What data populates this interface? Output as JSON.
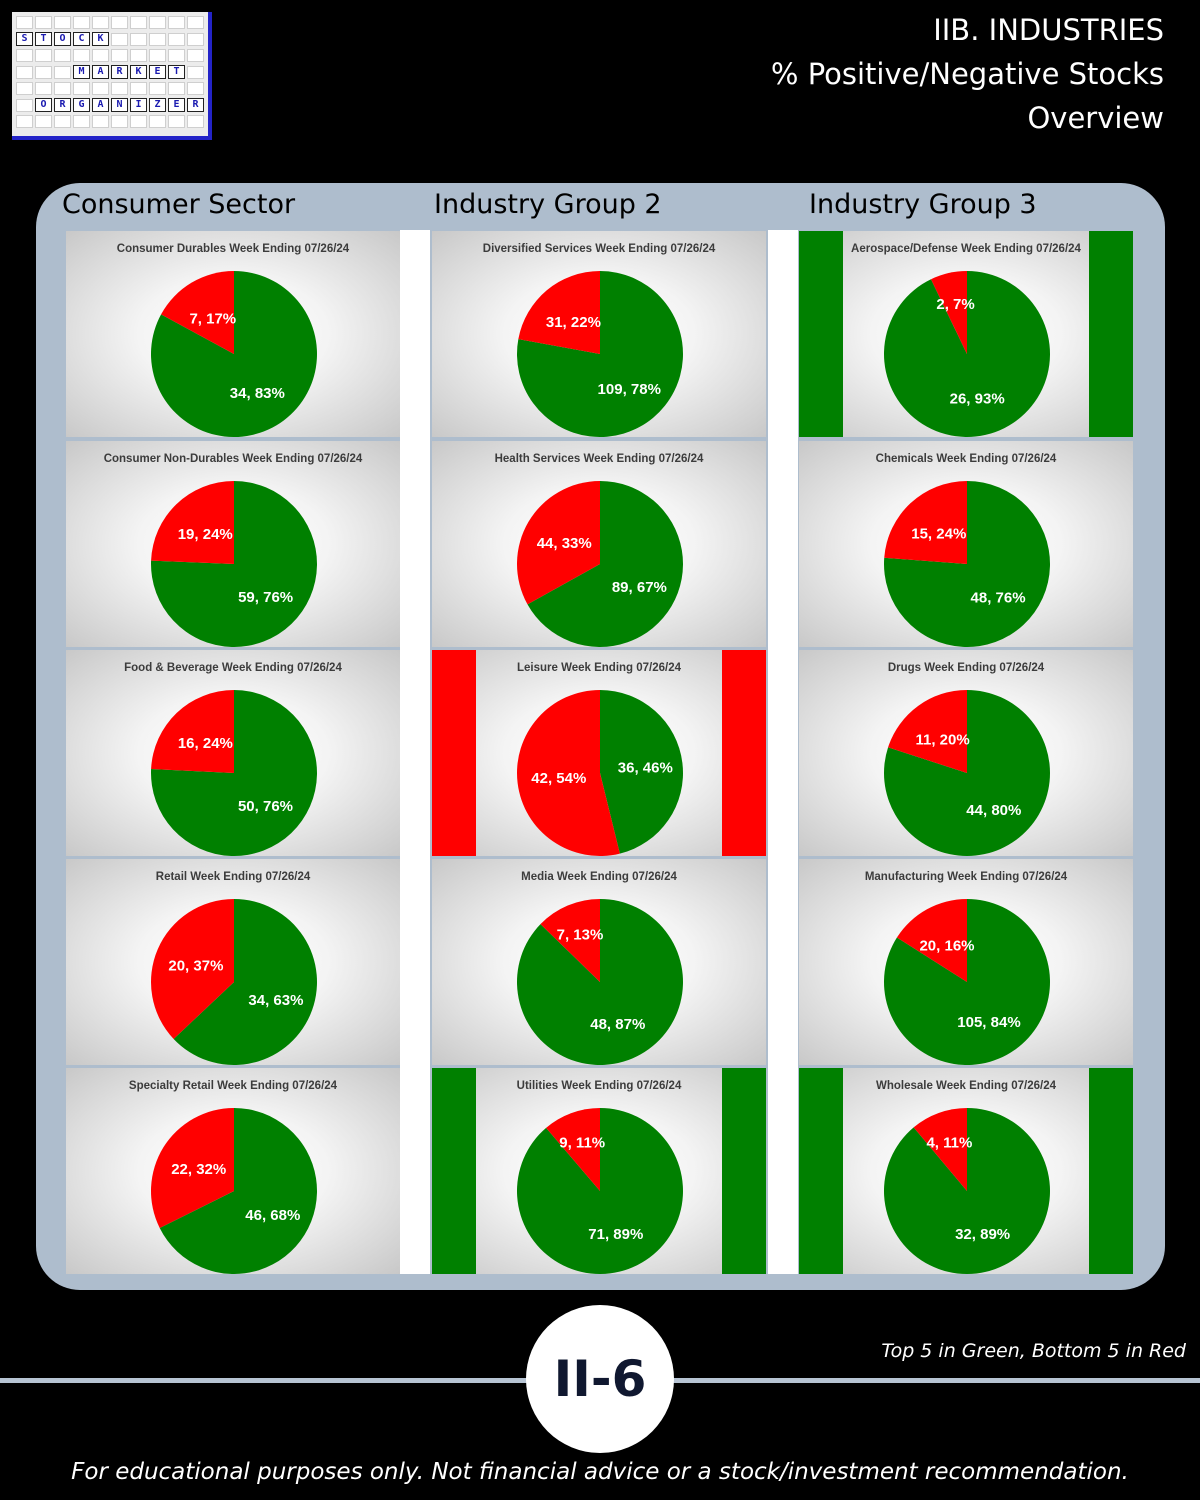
{
  "header": {
    "line1": "IIB. INDUSTRIES",
    "line2": "% Positive/Negative Stocks",
    "line3": "Overview"
  },
  "logo": {
    "words": [
      "STOCK",
      "MARKET",
      "ORGANIZER"
    ],
    "border_color": "#2323c8"
  },
  "columns": [
    {
      "title": "Consumer Sector"
    },
    {
      "title": "Industry Group 2"
    },
    {
      "title": "Industry Group 3"
    }
  ],
  "colors": {
    "positive": "#008000",
    "negative": "#ff0000",
    "panel": "#aebdcd"
  },
  "chart_data": [
    {
      "type": "pie",
      "title": "Consumer Durables Week Ending 07/26/24",
      "slices": [
        {
          "value": 34,
          "percent": 83,
          "label": "34, 83%",
          "color": "#008000"
        },
        {
          "value": 7,
          "percent": 17,
          "label": "7, 17%",
          "color": "#ff0000"
        }
      ],
      "highlight": "none"
    },
    {
      "type": "pie",
      "title": "Consumer Non-Durables Week Ending 07/26/24",
      "slices": [
        {
          "value": 59,
          "percent": 76,
          "label": "59, 76%",
          "color": "#008000"
        },
        {
          "value": 19,
          "percent": 24,
          "label": "19, 24%",
          "color": "#ff0000"
        }
      ],
      "highlight": "none"
    },
    {
      "type": "pie",
      "title": "Food & Beverage Week Ending 07/26/24",
      "slices": [
        {
          "value": 50,
          "percent": 76,
          "label": "50, 76%",
          "color": "#008000"
        },
        {
          "value": 16,
          "percent": 24,
          "label": "16, 24%",
          "color": "#ff0000"
        }
      ],
      "highlight": "none"
    },
    {
      "type": "pie",
      "title": "Retail Week Ending 07/26/24",
      "slices": [
        {
          "value": 34,
          "percent": 63,
          "label": "34, 63%",
          "color": "#008000"
        },
        {
          "value": 20,
          "percent": 37,
          "label": "20, 37%",
          "color": "#ff0000"
        }
      ],
      "highlight": "none"
    },
    {
      "type": "pie",
      "title": "Specialty Retail Week Ending 07/26/24",
      "slices": [
        {
          "value": 46,
          "percent": 68,
          "label": "46, 68%",
          "color": "#008000"
        },
        {
          "value": 22,
          "percent": 32,
          "label": "22, 32%",
          "color": "#ff0000"
        }
      ],
      "highlight": "none"
    },
    {
      "type": "pie",
      "title": "Diversified Services Week Ending 07/26/24",
      "slices": [
        {
          "value": 109,
          "percent": 78,
          "label": "109, 78%",
          "color": "#008000"
        },
        {
          "value": 31,
          "percent": 22,
          "label": "31, 22%",
          "color": "#ff0000"
        }
      ],
      "highlight": "none"
    },
    {
      "type": "pie",
      "title": "Health Services Week Ending 07/26/24",
      "slices": [
        {
          "value": 89,
          "percent": 67,
          "label": "89, 67%",
          "color": "#008000"
        },
        {
          "value": 44,
          "percent": 33,
          "label": "44, 33%",
          "color": "#ff0000"
        }
      ],
      "highlight": "none"
    },
    {
      "type": "pie",
      "title": "Leisure Week Ending 07/26/24",
      "slices": [
        {
          "value": 36,
          "percent": 46,
          "label": "36, 46%",
          "color": "#008000"
        },
        {
          "value": 42,
          "percent": 54,
          "label": "42, 54%",
          "color": "#ff0000"
        }
      ],
      "highlight": "bottom"
    },
    {
      "type": "pie",
      "title": "Media Week Ending 07/26/24",
      "slices": [
        {
          "value": 48,
          "percent": 87,
          "label": "48, 87%",
          "color": "#008000"
        },
        {
          "value": 7,
          "percent": 13,
          "label": "7, 13%",
          "color": "#ff0000"
        }
      ],
      "highlight": "none"
    },
    {
      "type": "pie",
      "title": "Utilities Week Ending 07/26/24",
      "slices": [
        {
          "value": 71,
          "percent": 89,
          "label": "71, 89%",
          "color": "#008000"
        },
        {
          "value": 9,
          "percent": 11,
          "label": "9, 11%",
          "color": "#ff0000"
        }
      ],
      "highlight": "top"
    },
    {
      "type": "pie",
      "title": "Aerospace/Defense Week Ending 07/26/24",
      "slices": [
        {
          "value": 26,
          "percent": 93,
          "label": "26, 93%",
          "color": "#008000"
        },
        {
          "value": 2,
          "percent": 7,
          "label": "2, 7%",
          "color": "#ff0000"
        }
      ],
      "highlight": "top"
    },
    {
      "type": "pie",
      "title": "Chemicals Week Ending 07/26/24",
      "slices": [
        {
          "value": 48,
          "percent": 76,
          "label": "48, 76%",
          "color": "#008000"
        },
        {
          "value": 15,
          "percent": 24,
          "label": "15, 24%",
          "color": "#ff0000"
        }
      ],
      "highlight": "none"
    },
    {
      "type": "pie",
      "title": "Drugs Week Ending 07/26/24",
      "slices": [
        {
          "value": 44,
          "percent": 80,
          "label": "44, 80%",
          "color": "#008000"
        },
        {
          "value": 11,
          "percent": 20,
          "label": "11, 20%",
          "color": "#ff0000"
        }
      ],
      "highlight": "none"
    },
    {
      "type": "pie",
      "title": "Manufacturing Week Ending 07/26/24",
      "slices": [
        {
          "value": 105,
          "percent": 84,
          "label": "105, 84%",
          "color": "#008000"
        },
        {
          "value": 20,
          "percent": 16,
          "label": "20, 16%",
          "color": "#ff0000"
        }
      ],
      "highlight": "none"
    },
    {
      "type": "pie",
      "title": "Wholesale Week Ending 07/26/24",
      "slices": [
        {
          "value": 32,
          "percent": 89,
          "label": "32, 89%",
          "color": "#008000"
        },
        {
          "value": 4,
          "percent": 11,
          "label": "4, 11%",
          "color": "#ff0000"
        }
      ],
      "highlight": "top"
    }
  ],
  "footer": {
    "note": "Top 5 in Green, Bottom 5 in Red",
    "page_badge": "II-6",
    "disclaimer": "For educational purposes only. Not financial advice or a stock/investment recommendation."
  }
}
